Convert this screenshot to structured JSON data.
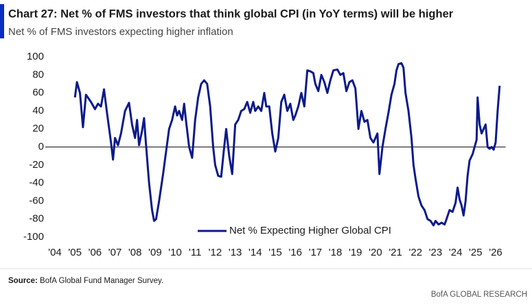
{
  "chart_data": {
    "type": "line",
    "title": "Chart 27: Net % of FMS investors that think global CPI (in YoY terms) will be higher",
    "subtitle": "Net % of FMS investors expecting higher inflation",
    "x": [
      2005.0,
      2005.1,
      2005.25,
      2005.4,
      2005.55,
      2005.8,
      2006.0,
      2006.15,
      2006.3,
      2006.45,
      2006.6,
      2006.8,
      2006.9,
      2007.0,
      2007.15,
      2007.3,
      2007.5,
      2007.7,
      2007.85,
      2008.0,
      2008.1,
      2008.2,
      2008.35,
      2008.45,
      2008.55,
      2008.7,
      2008.85,
      2008.95,
      2009.05,
      2009.2,
      2009.4,
      2009.55,
      2009.7,
      2009.85,
      2010.0,
      2010.1,
      2010.2,
      2010.35,
      2010.45,
      2010.55,
      2010.7,
      2010.85,
      2011.0,
      2011.15,
      2011.3,
      2011.45,
      2011.6,
      2011.75,
      2011.9,
      2012.0,
      2012.15,
      2012.3,
      2012.45,
      2012.55,
      2012.7,
      2012.85,
      2013.0,
      2013.15,
      2013.3,
      2013.45,
      2013.6,
      2013.75,
      2013.9,
      2014.0,
      2014.15,
      2014.3,
      2014.45,
      2014.55,
      2014.7,
      2014.85,
      2015.0,
      2015.15,
      2015.3,
      2015.45,
      2015.6,
      2015.75,
      2015.9,
      2016.0,
      2016.15,
      2016.3,
      2016.45,
      2016.6,
      2016.75,
      2016.9,
      2017.0,
      2017.15,
      2017.3,
      2017.45,
      2017.6,
      2017.75,
      2017.9,
      2018.1,
      2018.25,
      2018.4,
      2018.55,
      2018.7,
      2018.85,
      2019.0,
      2019.15,
      2019.3,
      2019.45,
      2019.6,
      2019.75,
      2019.9,
      2020.0,
      2020.1,
      2020.2,
      2020.35,
      2020.5,
      2020.65,
      2020.8,
      2020.95,
      2021.05,
      2021.15,
      2021.3,
      2021.4,
      2021.5,
      2021.65,
      2021.8,
      2021.9,
      2022.0,
      2022.15,
      2022.3,
      2022.45,
      2022.6,
      2022.75,
      2022.9,
      2023.0,
      2023.15,
      2023.3,
      2023.45,
      2023.55,
      2023.7,
      2023.85,
      2024.0,
      2024.1,
      2024.2,
      2024.3,
      2024.4,
      2024.5,
      2024.6,
      2024.7,
      2024.85,
      2024.95,
      2025.05,
      2025.1,
      2025.2,
      2025.3,
      2025.4,
      2025.5,
      2025.6,
      2025.7,
      2025.8,
      2025.9,
      2026.0,
      2026.1,
      2026.2
    ],
    "series": [
      {
        "name": "Net % Expecting Higher Global CPI",
        "color": "#0c1a8a",
        "values": [
          55,
          72,
          60,
          22,
          58,
          50,
          42,
          48,
          45,
          64,
          38,
          5,
          -14,
          10,
          2,
          15,
          40,
          49,
          25,
          10,
          30,
          2,
          18,
          32,
          2,
          -40,
          -70,
          -82,
          -80,
          -60,
          -30,
          -5,
          20,
          30,
          45,
          35,
          40,
          30,
          48,
          28,
          0,
          -12,
          30,
          55,
          70,
          74,
          70,
          45,
          0,
          -20,
          -32,
          -33,
          0,
          20,
          -10,
          -30,
          25,
          30,
          40,
          42,
          50,
          38,
          50,
          40,
          45,
          40,
          60,
          45,
          45,
          15,
          -5,
          10,
          50,
          58,
          40,
          48,
          30,
          35,
          45,
          60,
          45,
          85,
          84,
          82,
          70,
          62,
          80,
          72,
          60,
          74,
          85,
          86,
          80,
          82,
          62,
          72,
          74,
          65,
          20,
          40,
          28,
          30,
          10,
          5,
          10,
          15,
          -30,
          0,
          20,
          38,
          58,
          70,
          85,
          92,
          93,
          88,
          60,
          40,
          10,
          -20,
          -35,
          -55,
          -65,
          -70,
          -80,
          -82,
          -87,
          -82,
          -86,
          -84,
          -86,
          -80,
          -70,
          -72,
          -62,
          -45,
          -58,
          -65,
          -76,
          -60,
          -32,
          -15,
          -8,
          0,
          8,
          55,
          25,
          15,
          20,
          25,
          0,
          -2,
          0,
          -3,
          5,
          40,
          68
        ]
      }
    ],
    "xlim": [
      2004,
      2026.5
    ],
    "xticks": [
      {
        "value": 2004,
        "label": "'04"
      },
      {
        "value": 2005,
        "label": "'05"
      },
      {
        "value": 2006,
        "label": "'06"
      },
      {
        "value": 2007,
        "label": "'07"
      },
      {
        "value": 2008,
        "label": "'08"
      },
      {
        "value": 2009,
        "label": "'09"
      },
      {
        "value": 2010,
        "label": "'10"
      },
      {
        "value": 2011,
        "label": "'11"
      },
      {
        "value": 2012,
        "label": "'12"
      },
      {
        "value": 2013,
        "label": "'13"
      },
      {
        "value": 2014,
        "label": "'14"
      },
      {
        "value": 2015,
        "label": "'15"
      },
      {
        "value": 2016,
        "label": "'16"
      },
      {
        "value": 2017,
        "label": "'17"
      },
      {
        "value": 2018,
        "label": "'18"
      },
      {
        "value": 2019,
        "label": "'19"
      },
      {
        "value": 2020,
        "label": "'20"
      },
      {
        "value": 2021,
        "label": "'21"
      },
      {
        "value": 2022,
        "label": "'22"
      },
      {
        "value": 2023,
        "label": "'23"
      },
      {
        "value": 2024,
        "label": "'24"
      },
      {
        "value": 2025,
        "label": "'25"
      },
      {
        "value": 2026,
        "label": "'26"
      }
    ],
    "ylim": [
      -100,
      100
    ],
    "yticks": [
      -100,
      -80,
      -60,
      -40,
      -20,
      0,
      20,
      40,
      60,
      80,
      100
    ],
    "zero_line": true,
    "legend": "lower center"
  },
  "footer": {
    "source_label": "Source:",
    "source": "BofA Global Fund Manager Survey.",
    "brand": "BofA GLOBAL RESEARCH"
  }
}
